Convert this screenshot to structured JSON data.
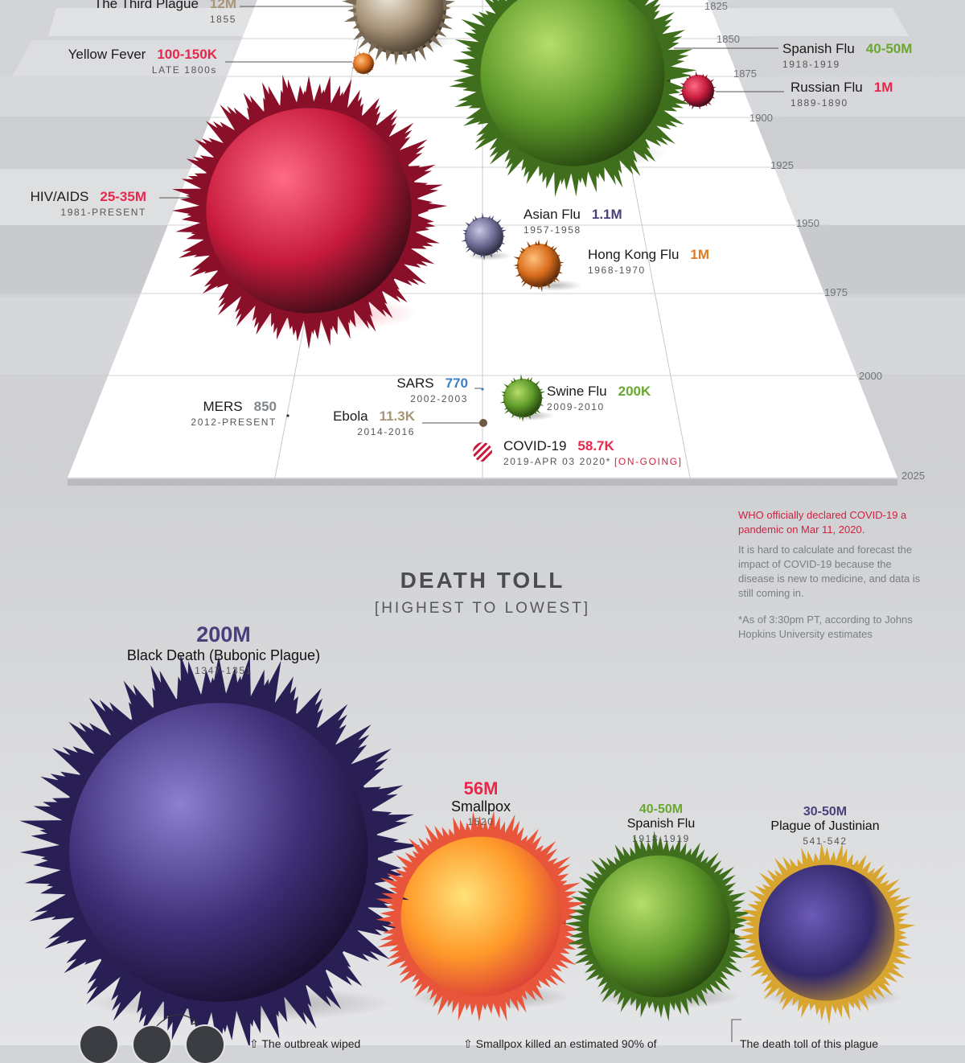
{
  "chart_data": [
    {
      "type": "scatter",
      "x_axis_ticks": [
        "1825",
        "1850",
        "1875",
        "1900",
        "1925",
        "1950",
        "1975",
        "2000",
        "2025"
      ],
      "points": [
        {
          "name": "The Third Plague",
          "deaths": "12M",
          "dates": "1855",
          "color": "#a89478"
        },
        {
          "name": "Yellow Fever",
          "deaths": "100-150K",
          "dates": "LATE 1800s",
          "color": "#e8274b"
        },
        {
          "name": "Spanish Flu",
          "deaths": "40-50M",
          "dates": "1918-1919",
          "color": "#6aa730"
        },
        {
          "name": "Russian Flu",
          "deaths": "1M",
          "dates": "1889-1890",
          "color": "#e8274b"
        },
        {
          "name": "HIV/AIDS",
          "deaths": "25-35M",
          "dates": "1981-PRESENT",
          "color": "#e8274b"
        },
        {
          "name": "Asian Flu",
          "deaths": "1.1M",
          "dates": "1957-1958",
          "color": "#4a3f7c"
        },
        {
          "name": "Hong Kong Flu",
          "deaths": "1M",
          "dates": "1968-1970",
          "color": "#e07a22"
        },
        {
          "name": "SARS",
          "deaths": "770",
          "dates": "2002-2003",
          "color": "#3d7fc4"
        },
        {
          "name": "Swine Flu",
          "deaths": "200K",
          "dates": "2009-2010",
          "color": "#6aa730"
        },
        {
          "name": "MERS",
          "deaths": "850",
          "dates": "2012-PRESENT",
          "color": "#7f868c"
        },
        {
          "name": "Ebola",
          "deaths": "11.3K",
          "dates": "2014-2016",
          "color": "#a89478"
        },
        {
          "name": "COVID-19",
          "deaths": "58.7K",
          "dates": "2019-APR 03 2020*",
          "status": "[ON-GOING]",
          "color": "#e8274b"
        }
      ]
    },
    {
      "type": "bar",
      "title": "DEATH TOLL",
      "subtitle": "[HIGHEST TO LOWEST]",
      "categories": [
        "Black Death (Bubonic Plague)",
        "Smallpox",
        "Spanish Flu",
        "Plague of Justinian"
      ],
      "values": [
        200,
        56,
        45,
        40
      ],
      "series": [
        {
          "name": "Black Death (Bubonic Plague)",
          "deaths": "200M",
          "dates": "1347-1351",
          "color": "#4a3f7c"
        },
        {
          "name": "Smallpox",
          "deaths": "56M",
          "dates": "1520",
          "color": "#e8274b"
        },
        {
          "name": "Spanish Flu",
          "deaths": "40-50M",
          "dates": "1918-1919",
          "color": "#6aa730"
        },
        {
          "name": "Plague of Justinian",
          "deaths": "30-50M",
          "dates": "541-542",
          "color": "#4a3f7c"
        }
      ]
    }
  ],
  "notes": {
    "who": "WHO officially declared COVID-19 a pandemic on Mar 11, 2020.",
    "forecast": "It is hard to calculate and forecast the impact of COVID-19 because the disease is new to medicine, and data is still coming in.",
    "asof": "*As of 3:30pm PT, according to Johns Hopkins University estimates"
  },
  "blurbs": {
    "b1": "The outbreak wiped",
    "b2": "Smallpox killed an estimated 90% of",
    "b3": "The death toll of this plague"
  },
  "colors": {
    "red": "#e8274b",
    "green": "#6aa730",
    "purple": "#4a3f7c",
    "tan": "#a89478",
    "orange": "#e07a22",
    "blue": "#3d7fc4",
    "gray": "#7f868c"
  }
}
